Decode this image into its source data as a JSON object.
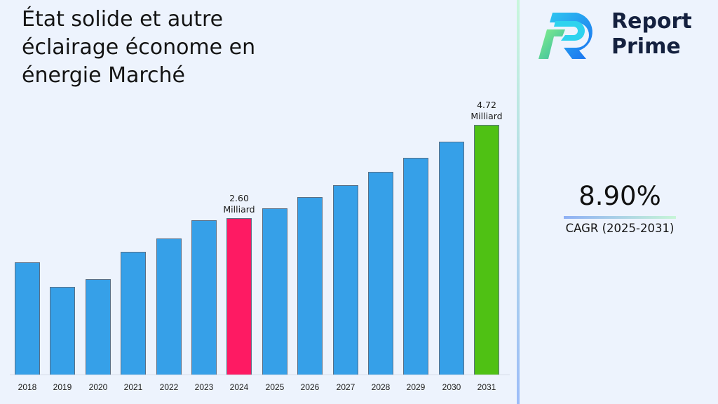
{
  "title": "État solide et autre éclairage économe en énergie Marché",
  "brand": {
    "line1": "Report",
    "line2": "Prime",
    "logo_icon": "report-prime-r-logo"
  },
  "cagr": {
    "value": "8.90%",
    "label": "CAGR (2025-2031)"
  },
  "colors": {
    "default_bar": "#36a0e8",
    "highlight_2024": "#fe1a63",
    "highlight_2031": "#4fc114",
    "background": "#edf3fd"
  },
  "annotations": [
    {
      "year": "2024",
      "line1": "2.60",
      "line2": "Milliard"
    },
    {
      "year": "2031",
      "line1": "4.72",
      "line2": "Milliard"
    }
  ],
  "chart_data": {
    "type": "bar",
    "title": "État solide et autre éclairage économe en énergie Marché",
    "xlabel": "",
    "ylabel": "",
    "unit": "Milliard",
    "categories": [
      "2018",
      "2019",
      "2020",
      "2021",
      "2022",
      "2023",
      "2024",
      "2025",
      "2026",
      "2027",
      "2028",
      "2029",
      "2030",
      "2031"
    ],
    "values": [
      1.6,
      1.03,
      1.21,
      1.84,
      2.14,
      2.55,
      2.6,
      2.83,
      3.08,
      3.35,
      3.65,
      3.97,
      4.33,
      4.72
    ],
    "highlighted": {
      "2024": "#fe1a63",
      "2031": "#4fc114"
    },
    "data_labels": {
      "2024": "2.60 Milliard",
      "2031": "4.72 Milliard"
    },
    "grid": false,
    "legend": null
  }
}
